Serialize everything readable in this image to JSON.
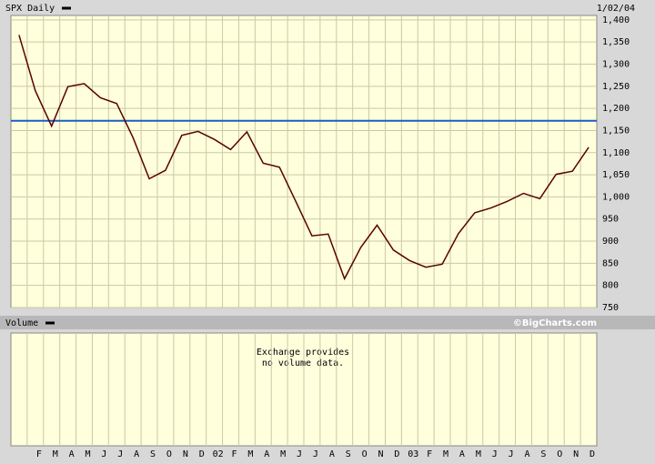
{
  "chart_data": {
    "type": "line",
    "title": "SPX Daily",
    "date_label": "1/02/04",
    "volume_title": "Volume",
    "credit": "©BigCharts.com",
    "volume_note": [
      "Exchange provides",
      "no volume data."
    ],
    "categories": [
      null,
      "F",
      "M",
      "A",
      "M",
      "J",
      "J",
      "A",
      "S",
      "O",
      "N",
      "D",
      "02",
      "F",
      "M",
      "A",
      "M",
      "J",
      "J",
      "A",
      "S",
      "O",
      "N",
      "D",
      "03",
      "F",
      "M",
      "A",
      "M",
      "J",
      "J",
      "A",
      "S",
      "O",
      "N",
      "D"
    ],
    "series": [
      {
        "name": "SPX",
        "color": "#5a0000",
        "values": [
          1366,
          1240,
          1160,
          1249,
          1256,
          1224,
          1211,
          1134,
          1041,
          1060,
          1139,
          1148,
          1130,
          1107,
          1147,
          1076,
          1067,
          990,
          912,
          916,
          815,
          886,
          936,
          880,
          856,
          841,
          848,
          917,
          964,
          975,
          990,
          1008,
          996,
          1051,
          1058,
          1112
        ]
      }
    ],
    "reference_line": {
      "value": 1172,
      "color": "#1a5fc0"
    },
    "ylim": [
      750,
      1410
    ],
    "yticks": [
      750,
      800,
      850,
      900,
      950,
      {
        "value": 1000,
        "label": "1,000"
      },
      {
        "value": 1050,
        "label": "1,050"
      },
      {
        "value": 1100,
        "label": "1,100"
      },
      {
        "value": 1150,
        "label": "1,150"
      },
      {
        "value": 1200,
        "label": "1,200"
      },
      {
        "value": 1250,
        "label": "1,250"
      },
      {
        "value": 1300,
        "label": "1,300"
      },
      {
        "value": 1350,
        "label": "1,350"
      },
      {
        "value": 1400,
        "label": "1,400"
      }
    ],
    "grid": true
  }
}
